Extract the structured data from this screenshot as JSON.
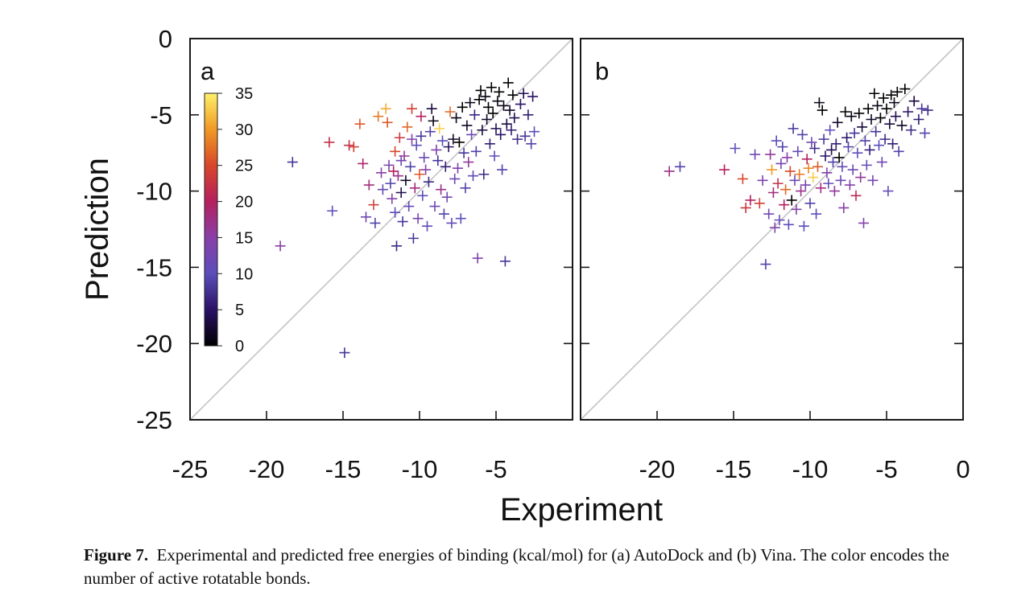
{
  "chart_data": [
    {
      "type": "scatter",
      "panel_label": "a",
      "xlabel": "Experiment",
      "ylabel": "Prediction",
      "xlim": [
        -25,
        0
      ],
      "ylim": [
        -25,
        0
      ],
      "xticks": [
        "-25",
        "-20",
        "-15",
        "-10",
        "-5"
      ],
      "yticks": [
        "0",
        "-5",
        "-10",
        "-15",
        "-20",
        "-25"
      ],
      "diagonal": true,
      "grid": false,
      "colorbar": {
        "placement": "top-left",
        "range": [
          0,
          35
        ],
        "ticks": [
          "35",
          "30",
          "25",
          "20",
          "15",
          "10",
          "5",
          "0"
        ],
        "stops": [
          "#000000",
          "#2a1166",
          "#5b4ebb",
          "#8a3fa8",
          "#b5205e",
          "#d8472a",
          "#f09a25",
          "#fff06a"
        ]
      },
      "points": [
        [
          -19.1,
          -13.6,
          15
        ],
        [
          -18.3,
          -8.1,
          8
        ],
        [
          -15.9,
          -6.8,
          22
        ],
        [
          -15.7,
          -11.3,
          10
        ],
        [
          -14.9,
          -20.6,
          8
        ],
        [
          -14.6,
          -7.0,
          22
        ],
        [
          -14.3,
          -7.1,
          24
        ],
        [
          -13.9,
          -5.6,
          26
        ],
        [
          -13.7,
          -8.2,
          19
        ],
        [
          -13.5,
          -11.7,
          12
        ],
        [
          -13.3,
          -9.6,
          18
        ],
        [
          -13.0,
          -10.9,
          24
        ],
        [
          -12.9,
          -12.1,
          9
        ],
        [
          -12.7,
          -5.1,
          28
        ],
        [
          -12.5,
          -8.8,
          15
        ],
        [
          -12.4,
          -9.9,
          11
        ],
        [
          -12.2,
          -4.6,
          31
        ],
        [
          -12.1,
          -5.5,
          26
        ],
        [
          -12.0,
          -8.3,
          13
        ],
        [
          -11.9,
          -9.5,
          9
        ],
        [
          -11.8,
          -10.5,
          14
        ],
        [
          -11.7,
          -8.7,
          20
        ],
        [
          -11.6,
          -7.4,
          25
        ],
        [
          -11.6,
          -11.4,
          10
        ],
        [
          -11.5,
          -13.6,
          7
        ],
        [
          -11.4,
          -9.0,
          17
        ],
        [
          -11.3,
          -6.5,
          23
        ],
        [
          -11.2,
          -10.1,
          4
        ],
        [
          -11.2,
          -8.0,
          12
        ],
        [
          -11.1,
          -12.0,
          8
        ],
        [
          -11.0,
          -7.7,
          16
        ],
        [
          -10.9,
          -9.3,
          2
        ],
        [
          -10.8,
          -5.8,
          27
        ],
        [
          -10.7,
          -11.0,
          11
        ],
        [
          -10.6,
          -8.4,
          9
        ],
        [
          -10.5,
          -6.6,
          14
        ],
        [
          -10.5,
          -4.6,
          24
        ],
        [
          -10.4,
          -13.1,
          8
        ],
        [
          -10.3,
          -9.8,
          18
        ],
        [
          -10.2,
          -7.0,
          10
        ],
        [
          -10.1,
          -11.8,
          13
        ],
        [
          -10.0,
          -8.9,
          26
        ],
        [
          -9.9,
          -5.1,
          20
        ],
        [
          -9.9,
          -6.4,
          8
        ],
        [
          -9.8,
          -10.3,
          10
        ],
        [
          -9.7,
          -7.8,
          12
        ],
        [
          -9.6,
          -8.6,
          15
        ],
        [
          -9.5,
          -12.3,
          11
        ],
        [
          -9.4,
          -9.4,
          7
        ],
        [
          -9.3,
          -6.1,
          9
        ],
        [
          -9.2,
          -4.6,
          3
        ],
        [
          -9.1,
          -5.4,
          1
        ],
        [
          -9.0,
          -11.0,
          12
        ],
        [
          -8.9,
          -7.3,
          14
        ],
        [
          -8.8,
          -8.0,
          8
        ],
        [
          -8.7,
          -5.9,
          33
        ],
        [
          -8.6,
          -9.9,
          17
        ],
        [
          -8.5,
          -6.7,
          10
        ],
        [
          -8.4,
          -11.5,
          9
        ],
        [
          -8.3,
          -8.4,
          6
        ],
        [
          -8.2,
          -10.4,
          13
        ],
        [
          -8.1,
          -7.1,
          5
        ],
        [
          -8.0,
          -4.8,
          27
        ],
        [
          -7.9,
          -12.1,
          11
        ],
        [
          -7.8,
          -6.6,
          2
        ],
        [
          -7.7,
          -9.2,
          12
        ],
        [
          -7.6,
          -5.2,
          1
        ],
        [
          -7.5,
          -8.5,
          14
        ],
        [
          -7.4,
          -6.8,
          0
        ],
        [
          -7.3,
          -11.8,
          10
        ],
        [
          -7.2,
          -4.5,
          0
        ],
        [
          -7.1,
          -7.5,
          8
        ],
        [
          -7.0,
          -9.8,
          9
        ],
        [
          -6.9,
          -5.7,
          2
        ],
        [
          -6.8,
          -8.1,
          16
        ],
        [
          -6.7,
          -4.2,
          1
        ],
        [
          -6.6,
          -6.3,
          12
        ],
        [
          -6.5,
          -9.0,
          11
        ],
        [
          -6.4,
          -5.0,
          7
        ],
        [
          -6.3,
          -7.4,
          9
        ],
        [
          -6.2,
          -14.4,
          14
        ],
        [
          -6.1,
          -4.0,
          0
        ],
        [
          -6.0,
          -3.4,
          0
        ],
        [
          -5.9,
          -6.0,
          3
        ],
        [
          -5.8,
          -8.9,
          7
        ],
        [
          -5.7,
          -3.8,
          1
        ],
        [
          -5.6,
          -5.3,
          2
        ],
        [
          -5.5,
          -4.5,
          0
        ],
        [
          -5.4,
          -6.9,
          6
        ],
        [
          -5.3,
          -3.2,
          0
        ],
        [
          -5.2,
          -4.9,
          0
        ],
        [
          -5.1,
          -7.7,
          10
        ],
        [
          -5.0,
          -5.9,
          4
        ],
        [
          -4.9,
          -4.1,
          1
        ],
        [
          -4.8,
          -3.5,
          0
        ],
        [
          -4.7,
          -6.3,
          5
        ],
        [
          -4.6,
          -8.6,
          9
        ],
        [
          -4.5,
          -4.4,
          1
        ],
        [
          -4.4,
          -14.6,
          8
        ],
        [
          -4.3,
          -5.6,
          3
        ],
        [
          -4.2,
          -2.9,
          0
        ],
        [
          -4.1,
          -4.7,
          2
        ],
        [
          -4.0,
          -6.0,
          6
        ],
        [
          -3.9,
          -3.7,
          0
        ],
        [
          -3.8,
          -5.2,
          4
        ],
        [
          -3.6,
          -6.6,
          7
        ],
        [
          -3.4,
          -4.3,
          5
        ],
        [
          -3.2,
          -3.6,
          4
        ],
        [
          -3.1,
          -6.4,
          8
        ],
        [
          -2.9,
          -5.0,
          6
        ],
        [
          -2.7,
          -6.9,
          9
        ],
        [
          -2.6,
          -3.8,
          5
        ],
        [
          -2.5,
          -6.1,
          10
        ]
      ]
    },
    {
      "type": "scatter",
      "panel_label": "b",
      "xlabel": "Experiment",
      "ylabel": "Prediction",
      "xlim": [
        -25,
        0
      ],
      "ylim": [
        -25,
        0
      ],
      "xticks": [
        "-20",
        "-15",
        "-10",
        "-5",
        "0"
      ],
      "diagonal": true,
      "grid": false,
      "points": [
        [
          -19.2,
          -8.7,
          17
        ],
        [
          -18.5,
          -8.4,
          9
        ],
        [
          -15.6,
          -8.6,
          20
        ],
        [
          -14.9,
          -7.2,
          10
        ],
        [
          -14.4,
          -9.2,
          25
        ],
        [
          -14.2,
          -11.1,
          23
        ],
        [
          -13.9,
          -10.6,
          20
        ],
        [
          -13.6,
          -7.6,
          12
        ],
        [
          -13.3,
          -10.8,
          24
        ],
        [
          -13.1,
          -9.3,
          14
        ],
        [
          -12.9,
          -14.8,
          9
        ],
        [
          -12.7,
          -11.5,
          12
        ],
        [
          -12.6,
          -7.6,
          16
        ],
        [
          -12.5,
          -8.6,
          30
        ],
        [
          -12.4,
          -10.1,
          18
        ],
        [
          -12.3,
          -12.4,
          14
        ],
        [
          -12.2,
          -6.7,
          10
        ],
        [
          -12.1,
          -9.5,
          22
        ],
        [
          -12.0,
          -11.9,
          11
        ],
        [
          -11.9,
          -8.2,
          13
        ],
        [
          -11.8,
          -7.1,
          9
        ],
        [
          -11.7,
          -10.9,
          20
        ],
        [
          -11.6,
          -9.9,
          27
        ],
        [
          -11.5,
          -7.8,
          15
        ],
        [
          -11.4,
          -12.2,
          10
        ],
        [
          -11.3,
          -8.7,
          25
        ],
        [
          -11.2,
          -10.6,
          0
        ],
        [
          -11.1,
          -5.9,
          8
        ],
        [
          -11.0,
          -9.3,
          12
        ],
        [
          -10.9,
          -11.2,
          14
        ],
        [
          -10.8,
          -7.4,
          11
        ],
        [
          -10.7,
          -8.9,
          28
        ],
        [
          -10.6,
          -10.0,
          17
        ],
        [
          -10.5,
          -6.3,
          9
        ],
        [
          -10.4,
          -12.3,
          10
        ],
        [
          -10.3,
          -9.6,
          13
        ],
        [
          -10.2,
          -7.9,
          20
        ],
        [
          -10.1,
          -8.5,
          29
        ],
        [
          -10.0,
          -10.8,
          9
        ],
        [
          -9.9,
          -6.8,
          12
        ],
        [
          -9.8,
          -9.1,
          33
        ],
        [
          -9.7,
          -7.2,
          7
        ],
        [
          -9.6,
          -11.5,
          10
        ],
        [
          -9.5,
          -8.4,
          26
        ],
        [
          -9.4,
          -4.2,
          1
        ],
        [
          -9.3,
          -9.8,
          18
        ],
        [
          -9.2,
          -4.7,
          0
        ],
        [
          -9.1,
          -6.6,
          8
        ],
        [
          -9.0,
          -7.7,
          5
        ],
        [
          -8.9,
          -8.8,
          14
        ],
        [
          -8.8,
          -9.5,
          11
        ],
        [
          -8.7,
          -6.0,
          10
        ],
        [
          -8.6,
          -7.3,
          4
        ],
        [
          -8.5,
          -8.1,
          9
        ],
        [
          -8.4,
          -10.0,
          16
        ],
        [
          -8.3,
          -6.9,
          6
        ],
        [
          -8.2,
          -5.5,
          2
        ],
        [
          -8.1,
          -7.8,
          0
        ],
        [
          -8.0,
          -9.3,
          12
        ],
        [
          -7.9,
          -8.4,
          11
        ],
        [
          -7.8,
          -11.1,
          15
        ],
        [
          -7.7,
          -4.8,
          0
        ],
        [
          -7.6,
          -6.5,
          5
        ],
        [
          -7.5,
          -7.1,
          9
        ],
        [
          -7.4,
          -9.6,
          14
        ],
        [
          -7.3,
          -5.1,
          1
        ],
        [
          -7.2,
          -8.6,
          12
        ],
        [
          -7.1,
          -6.2,
          8
        ],
        [
          -7.0,
          -10.3,
          21
        ],
        [
          -6.9,
          -7.5,
          10
        ],
        [
          -6.8,
          -4.9,
          0
        ],
        [
          -6.7,
          -9.1,
          16
        ],
        [
          -6.6,
          -5.8,
          3
        ],
        [
          -6.5,
          -12.1,
          14
        ],
        [
          -6.4,
          -6.7,
          9
        ],
        [
          -6.3,
          -8.3,
          11
        ],
        [
          -6.2,
          -4.6,
          0
        ],
        [
          -6.1,
          -7.3,
          6
        ],
        [
          -6.0,
          -5.3,
          2
        ],
        [
          -5.9,
          -9.3,
          13
        ],
        [
          -5.8,
          -3.6,
          0
        ],
        [
          -5.7,
          -6.1,
          8
        ],
        [
          -5.6,
          -4.4,
          1
        ],
        [
          -5.5,
          -7.0,
          10
        ],
        [
          -5.4,
          -5.2,
          0
        ],
        [
          -5.3,
          -8.1,
          12
        ],
        [
          -5.2,
          -3.9,
          0
        ],
        [
          -5.1,
          -6.6,
          7
        ],
        [
          -5.0,
          -4.6,
          0
        ],
        [
          -4.9,
          -10.0,
          11
        ],
        [
          -4.8,
          -5.6,
          3
        ],
        [
          -4.7,
          -3.7,
          0
        ],
        [
          -4.6,
          -6.9,
          6
        ],
        [
          -4.5,
          -4.2,
          1
        ],
        [
          -4.4,
          -5.1,
          4
        ],
        [
          -4.3,
          -3.5,
          0
        ],
        [
          -4.2,
          -7.4,
          9
        ],
        [
          -4.0,
          -5.7,
          2
        ],
        [
          -3.8,
          -3.3,
          0
        ],
        [
          -3.6,
          -4.8,
          5
        ],
        [
          -3.4,
          -6.0,
          7
        ],
        [
          -3.2,
          -4.1,
          3
        ],
        [
          -2.9,
          -5.3,
          6
        ],
        [
          -2.7,
          -4.6,
          8
        ],
        [
          -2.5,
          -6.2,
          9
        ],
        [
          -2.3,
          -4.7,
          7
        ]
      ]
    }
  ],
  "caption": {
    "label": "Figure 7.",
    "text": "Experimental and predicted free energies of binding (kcal/mol) for (a) AutoDock and (b) Vina. The color encodes the number of active rotatable bonds."
  }
}
